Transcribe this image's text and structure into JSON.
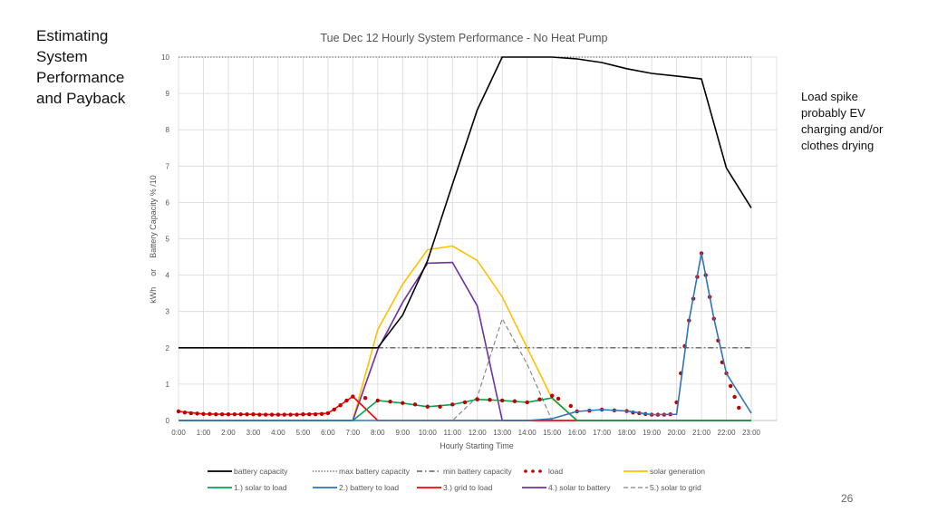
{
  "slide": {
    "title_lines": [
      "Estimating",
      "System",
      "Performance",
      "and Payback"
    ],
    "annotation_lines": [
      "Load spike",
      "probably EV",
      "charging and/or",
      "clothes drying"
    ],
    "page_number": "26"
  },
  "chart_data": {
    "type": "line",
    "title": "Tue Dec 12 Hourly System Performance - No Heat Pump",
    "xlabel": "Hourly Starting Time",
    "ylabel_parts": [
      "kWh",
      "or",
      "Battery Capacity % /10"
    ],
    "ylim": [
      0,
      10
    ],
    "yticks": [
      "0",
      "1",
      "2",
      "3",
      "4",
      "5",
      "6",
      "7",
      "8",
      "9",
      "10"
    ],
    "grid": true,
    "legend_position": "bottom",
    "x": [
      "0:00",
      "1:00",
      "2:00",
      "3:00",
      "4:00",
      "5:00",
      "6:00",
      "7:00",
      "8:00",
      "9:00",
      "10:00",
      "11:00",
      "12:00",
      "13:00",
      "14:00",
      "15:00",
      "16:00",
      "17:00",
      "18:00",
      "19:00",
      "20:00",
      "21:00",
      "22:00",
      "23:00"
    ],
    "series": [
      {
        "name": "battery capacity",
        "color": "#000000",
        "style": "solid",
        "points": [
          [
            0,
            2
          ],
          [
            1,
            2
          ],
          [
            2,
            2
          ],
          [
            3,
            2
          ],
          [
            4,
            2
          ],
          [
            5,
            2
          ],
          [
            6,
            2
          ],
          [
            7,
            2
          ],
          [
            8,
            2
          ],
          [
            9,
            2.9
          ],
          [
            10,
            4.4
          ],
          [
            11,
            6.5
          ],
          [
            12,
            8.55
          ],
          [
            13,
            10
          ],
          [
            14,
            10
          ],
          [
            15,
            10
          ],
          [
            16,
            9.95
          ],
          [
            17,
            9.85
          ],
          [
            18,
            9.68
          ],
          [
            19,
            9.55
          ],
          [
            20,
            9.48
          ],
          [
            21,
            9.4
          ],
          [
            22,
            6.95
          ],
          [
            23,
            5.85
          ]
        ]
      },
      {
        "name": "max battery capacity",
        "color": "#404040",
        "style": "dotted",
        "points": [
          [
            0,
            10
          ],
          [
            23,
            10
          ]
        ]
      },
      {
        "name": "min battery capacity",
        "color": "#404040",
        "style": "dashdot",
        "points": [
          [
            8,
            2
          ],
          [
            23,
            2
          ]
        ]
      },
      {
        "name": "load",
        "color": "#c00000",
        "style": "markers",
        "points": [
          [
            0,
            0.25
          ],
          [
            0.25,
            0.22
          ],
          [
            0.5,
            0.2
          ],
          [
            0.75,
            0.19
          ],
          [
            1,
            0.18
          ],
          [
            1.25,
            0.18
          ],
          [
            1.5,
            0.17
          ],
          [
            1.75,
            0.17
          ],
          [
            2,
            0.17
          ],
          [
            2.25,
            0.17
          ],
          [
            2.5,
            0.17
          ],
          [
            2.75,
            0.17
          ],
          [
            3,
            0.17
          ],
          [
            3.25,
            0.16
          ],
          [
            3.5,
            0.16
          ],
          [
            3.75,
            0.16
          ],
          [
            4,
            0.16
          ],
          [
            4.25,
            0.16
          ],
          [
            4.5,
            0.16
          ],
          [
            4.75,
            0.16
          ],
          [
            5,
            0.17
          ],
          [
            5.25,
            0.17
          ],
          [
            5.5,
            0.17
          ],
          [
            5.75,
            0.18
          ],
          [
            6,
            0.2
          ],
          [
            6.25,
            0.3
          ],
          [
            6.5,
            0.42
          ],
          [
            6.75,
            0.55
          ],
          [
            7,
            0.66
          ],
          [
            7.5,
            0.62
          ],
          [
            8,
            0.55
          ],
          [
            8.5,
            0.52
          ],
          [
            9,
            0.48
          ],
          [
            9.5,
            0.44
          ],
          [
            10,
            0.38
          ],
          [
            10.5,
            0.38
          ],
          [
            11,
            0.44
          ],
          [
            11.5,
            0.5
          ],
          [
            12,
            0.58
          ],
          [
            12.5,
            0.57
          ],
          [
            13,
            0.55
          ],
          [
            13.5,
            0.53
          ],
          [
            14,
            0.5
          ],
          [
            14.5,
            0.58
          ],
          [
            15,
            0.68
          ],
          [
            15.25,
            0.6
          ],
          [
            15.75,
            0.4
          ],
          [
            16,
            0.25
          ],
          [
            16.5,
            0.27
          ],
          [
            17,
            0.3
          ],
          [
            17.5,
            0.28
          ],
          [
            18,
            0.26
          ],
          [
            18.25,
            0.22
          ],
          [
            18.5,
            0.2
          ],
          [
            18.75,
            0.18
          ],
          [
            19,
            0.16
          ],
          [
            19.25,
            0.16
          ],
          [
            19.5,
            0.16
          ],
          [
            19.75,
            0.17
          ],
          [
            20,
            0.5
          ],
          [
            20.17,
            1.3
          ],
          [
            20.33,
            2.05
          ],
          [
            20.5,
            2.75
          ],
          [
            20.67,
            3.35
          ],
          [
            20.83,
            3.95
          ],
          [
            21,
            4.6
          ],
          [
            21.17,
            4
          ],
          [
            21.33,
            3.4
          ],
          [
            21.5,
            2.8
          ],
          [
            21.67,
            2.2
          ],
          [
            21.83,
            1.6
          ],
          [
            22,
            1.3
          ],
          [
            22.17,
            0.95
          ],
          [
            22.33,
            0.65
          ],
          [
            22.5,
            0.35
          ]
        ]
      },
      {
        "name": "solar generation",
        "color": "#ffc000",
        "style": "solid",
        "points": [
          [
            0,
            0
          ],
          [
            7,
            0
          ],
          [
            8,
            2.5
          ],
          [
            9,
            3.75
          ],
          [
            10,
            4.7
          ],
          [
            11,
            4.8
          ],
          [
            12,
            4.4
          ],
          [
            13,
            3.4
          ],
          [
            14,
            2
          ],
          [
            15,
            0.6
          ],
          [
            16,
            0
          ],
          [
            23,
            0
          ]
        ]
      },
      {
        "name": "1.) solar to load",
        "color": "#00a651",
        "style": "solid",
        "points": [
          [
            0,
            0
          ],
          [
            7,
            0
          ],
          [
            8,
            0.55
          ],
          [
            9,
            0.48
          ],
          [
            10,
            0.38
          ],
          [
            11,
            0.44
          ],
          [
            12,
            0.58
          ],
          [
            13,
            0.55
          ],
          [
            14,
            0.5
          ],
          [
            15,
            0.62
          ],
          [
            16,
            0
          ],
          [
            23,
            0
          ]
        ]
      },
      {
        "name": "2.) battery to load",
        "color": "#2e75b6",
        "style": "solid",
        "points": [
          [
            0,
            0
          ],
          [
            14,
            0
          ],
          [
            15,
            0.05
          ],
          [
            16,
            0.25
          ],
          [
            17,
            0.3
          ],
          [
            18,
            0.26
          ],
          [
            19,
            0.16
          ],
          [
            20,
            0.17
          ],
          [
            20.5,
            2.75
          ],
          [
            21,
            4.6
          ],
          [
            21.5,
            2.8
          ],
          [
            22,
            1.3
          ],
          [
            23,
            0.2
          ]
        ]
      },
      {
        "name": "3.) grid to load",
        "color": "#ff0000",
        "style": "solid",
        "points": [
          [
            0,
            0.25
          ],
          [
            1,
            0.18
          ],
          [
            2,
            0.17
          ],
          [
            3,
            0.17
          ],
          [
            4,
            0.16
          ],
          [
            5,
            0.17
          ],
          [
            6,
            0.2
          ],
          [
            7,
            0.66
          ],
          [
            8,
            0
          ],
          [
            23,
            0
          ]
        ]
      },
      {
        "name": "4.) solar to battery",
        "color": "#7030a0",
        "style": "solid",
        "points": [
          [
            0,
            0
          ],
          [
            7,
            0
          ],
          [
            8,
            1.95
          ],
          [
            9,
            3.25
          ],
          [
            10,
            4.33
          ],
          [
            11,
            4.35
          ],
          [
            12,
            3.15
          ],
          [
            13,
            0
          ],
          [
            23,
            0
          ]
        ]
      },
      {
        "name": "5.) solar to grid",
        "color": "#808080",
        "style": "dashed",
        "points": [
          [
            0,
            0
          ],
          [
            11,
            0
          ],
          [
            12,
            0.65
          ],
          [
            13,
            2.8
          ],
          [
            14,
            1.55
          ],
          [
            15,
            0
          ],
          [
            23,
            0
          ]
        ]
      }
    ]
  }
}
